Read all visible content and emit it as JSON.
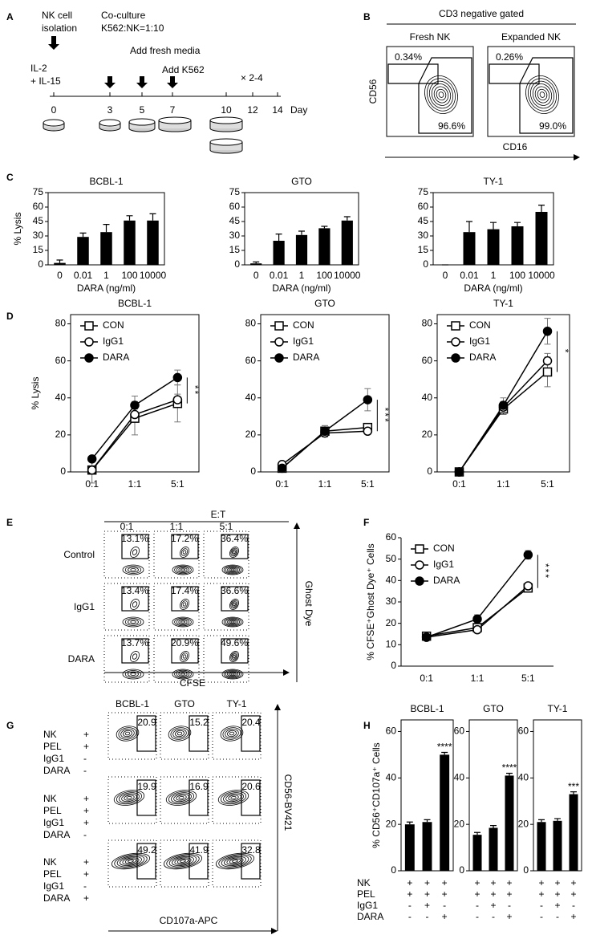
{
  "panel_labels": [
    "A",
    "B",
    "C",
    "D",
    "E",
    "F",
    "G",
    "H"
  ],
  "timeline": {
    "isolation": [
      "NK cell",
      "isolation"
    ],
    "coculture": [
      "Co-culture",
      "K562:NK=1:10"
    ],
    "cytokines": [
      "IL-2",
      "+ IL-15"
    ],
    "media": "Add fresh media",
    "k562": "Add K562",
    "repeat": "× 2-4",
    "days": [
      0,
      3,
      5,
      7,
      10,
      12,
      14
    ],
    "day_unit": "Day"
  },
  "flow_b": {
    "title": "CD3 negative gated",
    "x_label": "CD16",
    "y_label": "CD56",
    "plots": [
      {
        "name": "Fresh NK",
        "upper": "0.34%",
        "lower": "96.6%"
      },
      {
        "name": "Expanded NK",
        "upper": "0.26%",
        "lower": "99.0%"
      }
    ]
  },
  "flow_e": {
    "header": "E:T",
    "columns": [
      "0:1",
      "1:1",
      "5:1"
    ],
    "x_label": "CFSE",
    "y_label": "Ghost Dye",
    "rows": [
      {
        "name": "Control",
        "values": [
          "13.1%",
          "17.2%",
          "36.4%"
        ]
      },
      {
        "name": "IgG1",
        "values": [
          "13.4%",
          "17.4%",
          "36.6%"
        ]
      },
      {
        "name": "DARA",
        "values": [
          "13.7%",
          "20.9%",
          "49.6%"
        ]
      }
    ]
  },
  "flow_g": {
    "columns": [
      "BCBL-1",
      "GTO",
      "TY-1"
    ],
    "condition_names": [
      "NK",
      "PEL",
      "IgG1",
      "DARA"
    ],
    "x_label": "CD107a-APC",
    "y_label": "CD56-BV421",
    "rows": [
      {
        "signs": [
          "+",
          "+",
          "-",
          "-"
        ],
        "values": [
          "20.9",
          "15.2",
          "20.4"
        ]
      },
      {
        "signs": [
          "+",
          "+",
          "+",
          "-"
        ],
        "values": [
          "19.9",
          "16.9",
          "20.6"
        ]
      },
      {
        "signs": [
          "+",
          "+",
          "-",
          "+"
        ],
        "values": [
          "49.2",
          "41.9",
          "32.8"
        ]
      }
    ]
  },
  "chart_data": [
    {
      "type": "bar",
      "title": "BCBL-1",
      "y_label": "% Lysis",
      "x_label": "DARA (ng/ml)",
      "categories": [
        "0",
        "0.01",
        "1",
        "100",
        "10000"
      ],
      "values": [
        2,
        29,
        34,
        46,
        46
      ],
      "errors": [
        3,
        4,
        8,
        5,
        7
      ],
      "error_bars": "upper",
      "color": "#000000",
      "ylim": [
        0,
        75
      ],
      "yticks": [
        0,
        15,
        30,
        45,
        60,
        75
      ]
    },
    {
      "type": "bar",
      "title": "GTO",
      "x_label": "DARA (ng/ml)",
      "categories": [
        "0",
        "0.01",
        "1",
        "100",
        "10000"
      ],
      "values": [
        1.5,
        25,
        31,
        38,
        46
      ],
      "errors": [
        1.5,
        7,
        4,
        2,
        4
      ],
      "error_bars": "upper",
      "color": "#000000",
      "ylim": [
        0,
        75
      ],
      "yticks": [
        0,
        15,
        30,
        45,
        60,
        75
      ]
    },
    {
      "type": "bar",
      "title": "TY-1",
      "x_label": "DARA (ng/ml)",
      "categories": [
        "0",
        "0.01",
        "1",
        "100",
        "10000"
      ],
      "values": [
        0,
        34,
        37,
        40,
        55
      ],
      "errors": [
        0,
        11,
        7,
        4,
        7
      ],
      "error_bars": "upper",
      "color": "#000000",
      "ylim": [
        0,
        75
      ],
      "yticks": [
        0,
        15,
        30,
        45,
        60,
        75
      ]
    },
    {
      "type": "line",
      "title": "BCBL-1",
      "y_label": "% Lysis",
      "categories": [
        "0:1",
        "1:1",
        "5:1"
      ],
      "ylim": [
        0,
        85
      ],
      "yticks": [
        0,
        20,
        40,
        60,
        80
      ],
      "legend": "upper left",
      "error_bars": "both",
      "annotation": "**",
      "series": [
        {
          "name": "CON",
          "color": "#000000",
          "marker": "square-open",
          "values": [
            1,
            29,
            37
          ],
          "errors": [
            7,
            9,
            10
          ]
        },
        {
          "name": "IgG1",
          "color": "#000000",
          "marker": "circle-open",
          "values": [
            1,
            31,
            39
          ],
          "errors": [
            1,
            3,
            3
          ]
        },
        {
          "name": "DARA",
          "color": "#000000",
          "marker": "circle-filled",
          "values": [
            7,
            36,
            51
          ],
          "errors": [
            1,
            5,
            4
          ]
        }
      ]
    },
    {
      "type": "line",
      "title": "GTO",
      "categories": [
        "0:1",
        "1:1",
        "5:1"
      ],
      "ylim": [
        0,
        85
      ],
      "yticks": [
        0,
        20,
        40,
        60,
        80
      ],
      "legend": "upper left",
      "error_bars": "both",
      "annotation": "***",
      "series": [
        {
          "name": "CON",
          "color": "#000000",
          "marker": "square-open",
          "values": [
            2,
            22,
            24
          ],
          "errors": [
            1,
            3,
            2
          ]
        },
        {
          "name": "IgG1",
          "color": "#000000",
          "marker": "circle-open",
          "values": [
            4,
            21,
            22
          ],
          "errors": [
            1,
            2,
            1
          ]
        },
        {
          "name": "DARA",
          "color": "#000000",
          "marker": "circle-filled",
          "values": [
            2,
            22,
            39
          ],
          "errors": [
            1,
            3,
            6
          ]
        }
      ]
    },
    {
      "type": "line",
      "title": "TY-1",
      "categories": [
        "0:1",
        "1:1",
        "5:1"
      ],
      "ylim": [
        0,
        85
      ],
      "yticks": [
        0,
        20,
        40,
        60,
        80
      ],
      "legend": "upper left",
      "error_bars": "both",
      "annotation": "*",
      "series": [
        {
          "name": "CON",
          "color": "#000000",
          "marker": "square-open",
          "values": [
            0,
            34,
            54
          ],
          "errors": [
            0,
            3,
            8
          ]
        },
        {
          "name": "IgG1",
          "color": "#000000",
          "marker": "circle-open",
          "values": [
            0,
            35,
            60
          ],
          "errors": [
            0,
            3,
            4
          ]
        },
        {
          "name": "DARA",
          "color": "#000000",
          "marker": "circle-filled",
          "values": [
            0,
            36,
            76
          ],
          "errors": [
            0,
            4,
            7
          ]
        }
      ]
    },
    {
      "type": "line",
      "y_label": "% CFSE⁺Ghost Dye⁺ Cells",
      "categories": [
        "0:1",
        "1:1",
        "5:1"
      ],
      "ylim": [
        0,
        60
      ],
      "yticks": [
        0,
        10,
        20,
        30,
        40,
        50,
        60
      ],
      "legend": "upper left",
      "error_bars": "both",
      "annotation": "***",
      "series": [
        {
          "name": "CON",
          "color": "#000000",
          "marker": "square-open",
          "values": [
            14,
            18,
            36.5
          ],
          "errors": [
            1,
            1,
            1
          ]
        },
        {
          "name": "IgG1",
          "color": "#000000",
          "marker": "circle-open",
          "values": [
            13.5,
            17,
            37.5
          ],
          "errors": [
            1,
            1,
            1
          ]
        },
        {
          "name": "DARA",
          "color": "#000000",
          "marker": "circle-filled",
          "values": [
            13.5,
            22,
            52
          ],
          "errors": [
            1,
            2,
            2
          ]
        }
      ]
    },
    {
      "type": "bar",
      "title": "BCBL-1",
      "y_label": "% CD56⁺CD107a⁺ Cells",
      "condition_rows": [
        "NK",
        "PEL",
        "IgG1",
        "DARA"
      ],
      "condition_signs": [
        [
          "+",
          "+",
          "+"
        ],
        [
          "+",
          "+",
          "+"
        ],
        [
          "-",
          "+",
          "-"
        ],
        [
          "-",
          "-",
          "+"
        ]
      ],
      "values": [
        20,
        21,
        50
      ],
      "errors": [
        1,
        1,
        1
      ],
      "value_annotations": [
        null,
        null,
        "****"
      ],
      "error_bars": "upper",
      "color": "#000000",
      "ylim": [
        0,
        65
      ],
      "yticks": [
        0,
        20,
        40,
        60
      ]
    },
    {
      "type": "bar",
      "title": "GTO",
      "condition_signs": [
        [
          "+",
          "+",
          "+"
        ],
        [
          "+",
          "+",
          "+"
        ],
        [
          "-",
          "+",
          "-"
        ],
        [
          "-",
          "-",
          "+"
        ]
      ],
      "values": [
        15.5,
        18.5,
        41
      ],
      "errors": [
        1,
        1,
        1
      ],
      "value_annotations": [
        null,
        null,
        "****"
      ],
      "error_bars": "upper",
      "color": "#000000",
      "ylim": [
        0,
        65
      ],
      "yticks": [
        0,
        20,
        40,
        60
      ]
    },
    {
      "type": "bar",
      "title": "TY-1",
      "condition_signs": [
        [
          "+",
          "+",
          "+"
        ],
        [
          "+",
          "+",
          "+"
        ],
        [
          "-",
          "+",
          "-"
        ],
        [
          "-",
          "-",
          "+"
        ]
      ],
      "values": [
        21,
        21.5,
        33
      ],
      "errors": [
        1,
        1,
        1
      ],
      "value_annotations": [
        null,
        null,
        "***"
      ],
      "error_bars": "upper",
      "color": "#000000",
      "ylim": [
        0,
        65
      ],
      "yticks": [
        0,
        20,
        40,
        60
      ]
    }
  ]
}
